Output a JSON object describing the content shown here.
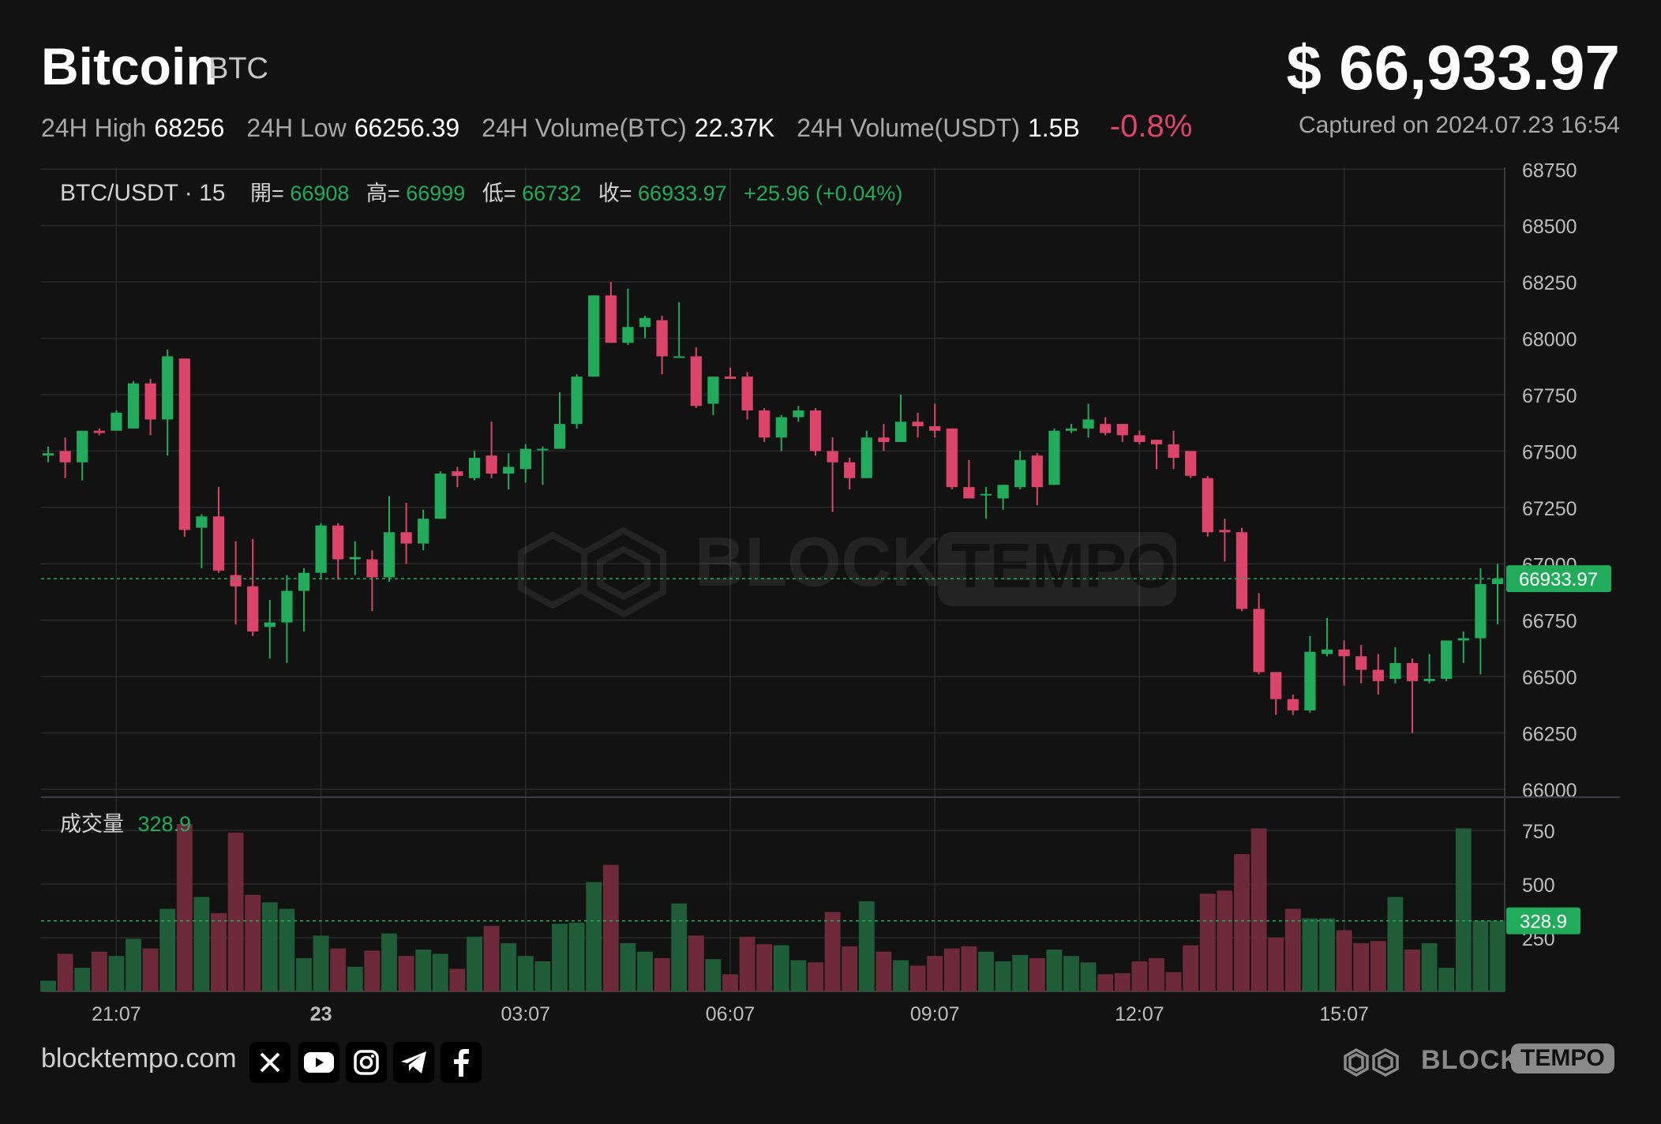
{
  "header": {
    "coin_name": "Bitcoin",
    "coin_symbol": "BTC",
    "price": "$ 66,933.97",
    "stats": [
      {
        "label": "24H High",
        "value": "68256"
      },
      {
        "label": "24H Low",
        "value": "66256.39"
      },
      {
        "label": "24H Volume(BTC)",
        "value": "22.37K"
      },
      {
        "label": "24H Volume(USDT)",
        "value": "1.5B"
      }
    ],
    "change": "-0.8%",
    "captured": "Captured on 2024.07.23 16:54"
  },
  "legend": {
    "pair": "BTC/USDT · 15",
    "open_label": "開=",
    "open": "66908",
    "high_label": "高=",
    "high": "66999",
    "low_label": "低=",
    "low": "66732",
    "close_label": "收=",
    "close": "66933.97",
    "change": "+25.96 (+0.04%)",
    "volume_label": "成交量",
    "volume": "328.9"
  },
  "footer": {
    "site": "blocktempo.com",
    "brand_block": "BLOCK",
    "brand_tempo": "TEMPO"
  },
  "colors": {
    "up": "#22ab5a",
    "down": "#dc4469",
    "background": "#121212",
    "grid": "#2a2a2a",
    "last_price_tag": "#22ab5a"
  },
  "icons": [
    "x-icon",
    "youtube-icon",
    "instagram-icon",
    "telegram-icon",
    "facebook-icon"
  ],
  "chart_data": {
    "type": "candlestick",
    "interval": "15",
    "x_tick_labels": [
      "21:07",
      "23",
      "03:07",
      "06:07",
      "09:07",
      "12:07",
      "15:07"
    ],
    "price_ticks": [
      66000,
      66250,
      66500,
      66750,
      67000,
      67250,
      67500,
      67750,
      68000,
      68250,
      68500,
      68750
    ],
    "price_range": [
      66000,
      68800
    ],
    "volume_ticks": [
      250,
      500,
      750
    ],
    "volume_range": [
      0,
      780
    ],
    "last_price": 66933.97,
    "last_price_label": "66933.97",
    "last_volume": 328.9,
    "last_volume_label": "328.9",
    "candles": [
      {
        "o": 67480,
        "h": 67520,
        "l": 67450,
        "c": 67490,
        "v": 50
      },
      {
        "o": 67500,
        "h": 67560,
        "l": 67380,
        "c": 67450,
        "v": 175
      },
      {
        "o": 67450,
        "h": 67580,
        "l": 67370,
        "c": 67590,
        "v": 110
      },
      {
        "o": 67590,
        "h": 67600,
        "l": 67570,
        "c": 67580,
        "v": 185
      },
      {
        "o": 67590,
        "h": 67680,
        "l": 67590,
        "c": 67670,
        "v": 165
      },
      {
        "o": 67600,
        "h": 67810,
        "l": 67600,
        "c": 67800,
        "v": 245
      },
      {
        "o": 67800,
        "h": 67820,
        "l": 67570,
        "c": 67640,
        "v": 200
      },
      {
        "o": 67640,
        "h": 67950,
        "l": 67480,
        "c": 67920,
        "v": 385
      },
      {
        "o": 67910,
        "h": 67910,
        "l": 67120,
        "c": 67150,
        "v": 780
      },
      {
        "o": 67160,
        "h": 67220,
        "l": 66980,
        "c": 67210,
        "v": 440
      },
      {
        "o": 67210,
        "h": 67340,
        "l": 66960,
        "c": 66970,
        "v": 365
      },
      {
        "o": 66950,
        "h": 67100,
        "l": 66730,
        "c": 66900,
        "v": 740
      },
      {
        "o": 66900,
        "h": 67110,
        "l": 66680,
        "c": 66700,
        "v": 450
      },
      {
        "o": 66720,
        "h": 66840,
        "l": 66580,
        "c": 66740,
        "v": 415
      },
      {
        "o": 66740,
        "h": 66950,
        "l": 66560,
        "c": 66880,
        "v": 385
      },
      {
        "o": 66880,
        "h": 66980,
        "l": 66700,
        "c": 66960,
        "v": 155
      },
      {
        "o": 66960,
        "h": 67180,
        "l": 66930,
        "c": 67170,
        "v": 260
      },
      {
        "o": 67170,
        "h": 67180,
        "l": 66930,
        "c": 67020,
        "v": 200
      },
      {
        "o": 67020,
        "h": 67100,
        "l": 66950,
        "c": 67030,
        "v": 115
      },
      {
        "o": 67020,
        "h": 67060,
        "l": 66790,
        "c": 66940,
        "v": 190
      },
      {
        "o": 66940,
        "h": 67300,
        "l": 66920,
        "c": 67140,
        "v": 270
      },
      {
        "o": 67140,
        "h": 67270,
        "l": 67000,
        "c": 67090,
        "v": 165
      },
      {
        "o": 67090,
        "h": 67240,
        "l": 67060,
        "c": 67200,
        "v": 195
      },
      {
        "o": 67200,
        "h": 67410,
        "l": 67200,
        "c": 67400,
        "v": 175
      },
      {
        "o": 67410,
        "h": 67430,
        "l": 67340,
        "c": 67390,
        "v": 105
      },
      {
        "o": 67380,
        "h": 67500,
        "l": 67370,
        "c": 67470,
        "v": 255
      },
      {
        "o": 67480,
        "h": 67630,
        "l": 67380,
        "c": 67400,
        "v": 305
      },
      {
        "o": 67400,
        "h": 67490,
        "l": 67330,
        "c": 67430,
        "v": 225
      },
      {
        "o": 67420,
        "h": 67530,
        "l": 67360,
        "c": 67510,
        "v": 165
      },
      {
        "o": 67510,
        "h": 67520,
        "l": 67350,
        "c": 67510,
        "v": 140
      },
      {
        "o": 67510,
        "h": 67760,
        "l": 67510,
        "c": 67620,
        "v": 315
      },
      {
        "o": 67620,
        "h": 67840,
        "l": 67600,
        "c": 67830,
        "v": 320
      },
      {
        "o": 67830,
        "h": 68180,
        "l": 67830,
        "c": 68190,
        "v": 510
      },
      {
        "o": 68190,
        "h": 68250,
        "l": 67980,
        "c": 67980,
        "v": 590
      },
      {
        "o": 67980,
        "h": 68220,
        "l": 67970,
        "c": 68050,
        "v": 225
      },
      {
        "o": 68050,
        "h": 68100,
        "l": 68000,
        "c": 68090,
        "v": 185
      },
      {
        "o": 68080,
        "h": 68100,
        "l": 67840,
        "c": 67920,
        "v": 155
      },
      {
        "o": 67920,
        "h": 68160,
        "l": 67920,
        "c": 67920,
        "v": 410
      },
      {
        "o": 67920,
        "h": 67960,
        "l": 67690,
        "c": 67700,
        "v": 260
      },
      {
        "o": 67710,
        "h": 67820,
        "l": 67660,
        "c": 67830,
        "v": 150
      },
      {
        "o": 67830,
        "h": 67870,
        "l": 67820,
        "c": 67820,
        "v": 80
      },
      {
        "o": 67830,
        "h": 67850,
        "l": 67640,
        "c": 67680,
        "v": 255
      },
      {
        "o": 67680,
        "h": 67690,
        "l": 67540,
        "c": 67560,
        "v": 220
      },
      {
        "o": 67560,
        "h": 67660,
        "l": 67500,
        "c": 67650,
        "v": 215
      },
      {
        "o": 67650,
        "h": 67700,
        "l": 67630,
        "c": 67680,
        "v": 145
      },
      {
        "o": 67680,
        "h": 67690,
        "l": 67480,
        "c": 67500,
        "v": 135
      },
      {
        "o": 67500,
        "h": 67560,
        "l": 67230,
        "c": 67450,
        "v": 370
      },
      {
        "o": 67450,
        "h": 67470,
        "l": 67330,
        "c": 67380,
        "v": 210
      },
      {
        "o": 67380,
        "h": 67590,
        "l": 67380,
        "c": 67560,
        "v": 420
      },
      {
        "o": 67560,
        "h": 67620,
        "l": 67500,
        "c": 67540,
        "v": 185
      },
      {
        "o": 67540,
        "h": 67750,
        "l": 67540,
        "c": 67630,
        "v": 145
      },
      {
        "o": 67630,
        "h": 67670,
        "l": 67560,
        "c": 67610,
        "v": 120
      },
      {
        "o": 67610,
        "h": 67710,
        "l": 67560,
        "c": 67590,
        "v": 165
      },
      {
        "o": 67600,
        "h": 67600,
        "l": 67330,
        "c": 67340,
        "v": 200
      },
      {
        "o": 67340,
        "h": 67460,
        "l": 67290,
        "c": 67290,
        "v": 210
      },
      {
        "o": 67310,
        "h": 67340,
        "l": 67200,
        "c": 67310,
        "v": 185
      },
      {
        "o": 67290,
        "h": 67350,
        "l": 67240,
        "c": 67350,
        "v": 140
      },
      {
        "o": 67340,
        "h": 67500,
        "l": 67330,
        "c": 67460,
        "v": 170
      },
      {
        "o": 67480,
        "h": 67490,
        "l": 67260,
        "c": 67340,
        "v": 155
      },
      {
        "o": 67350,
        "h": 67600,
        "l": 67350,
        "c": 67590,
        "v": 195
      },
      {
        "o": 67590,
        "h": 67620,
        "l": 67580,
        "c": 67600,
        "v": 165
      },
      {
        "o": 67600,
        "h": 67710,
        "l": 67560,
        "c": 67640,
        "v": 135
      },
      {
        "o": 67620,
        "h": 67650,
        "l": 67570,
        "c": 67580,
        "v": 80
      },
      {
        "o": 67620,
        "h": 67610,
        "l": 67540,
        "c": 67570,
        "v": 85
      },
      {
        "o": 67570,
        "h": 67590,
        "l": 67530,
        "c": 67540,
        "v": 140
      },
      {
        "o": 67550,
        "h": 67550,
        "l": 67420,
        "c": 67530,
        "v": 155
      },
      {
        "o": 67530,
        "h": 67590,
        "l": 67420,
        "c": 67470,
        "v": 90
      },
      {
        "o": 67500,
        "h": 67500,
        "l": 67380,
        "c": 67390,
        "v": 215
      },
      {
        "o": 67380,
        "h": 67390,
        "l": 67120,
        "c": 67140,
        "v": 455
      },
      {
        "o": 67150,
        "h": 67200,
        "l": 67010,
        "c": 67140,
        "v": 470
      },
      {
        "o": 67140,
        "h": 67160,
        "l": 66790,
        "c": 66800,
        "v": 640
      },
      {
        "o": 66800,
        "h": 66870,
        "l": 66510,
        "c": 66520,
        "v": 760
      },
      {
        "o": 66520,
        "h": 66520,
        "l": 66330,
        "c": 66400,
        "v": 250
      },
      {
        "o": 66400,
        "h": 66420,
        "l": 66330,
        "c": 66350,
        "v": 385
      },
      {
        "o": 66350,
        "h": 66680,
        "l": 66340,
        "c": 66610,
        "v": 340
      },
      {
        "o": 66600,
        "h": 66760,
        "l": 66590,
        "c": 66620,
        "v": 340
      },
      {
        "o": 66620,
        "h": 66660,
        "l": 66460,
        "c": 66590,
        "v": 285
      },
      {
        "o": 66590,
        "h": 66640,
        "l": 66470,
        "c": 66530,
        "v": 225
      },
      {
        "o": 66530,
        "h": 66600,
        "l": 66420,
        "c": 66480,
        "v": 235
      },
      {
        "o": 66490,
        "h": 66630,
        "l": 66470,
        "c": 66560,
        "v": 440
      },
      {
        "o": 66560,
        "h": 66580,
        "l": 66250,
        "c": 66480,
        "v": 195
      },
      {
        "o": 66480,
        "h": 66600,
        "l": 66470,
        "c": 66490,
        "v": 225
      },
      {
        "o": 66490,
        "h": 66640,
        "l": 66480,
        "c": 66660,
        "v": 110
      },
      {
        "o": 66660,
        "h": 66700,
        "l": 66560,
        "c": 66670,
        "v": 760
      },
      {
        "o": 66670,
        "h": 66980,
        "l": 66510,
        "c": 66910,
        "v": 330
      },
      {
        "o": 66910,
        "h": 66999,
        "l": 66732,
        "c": 66933.97,
        "v": 328.9
      }
    ]
  }
}
